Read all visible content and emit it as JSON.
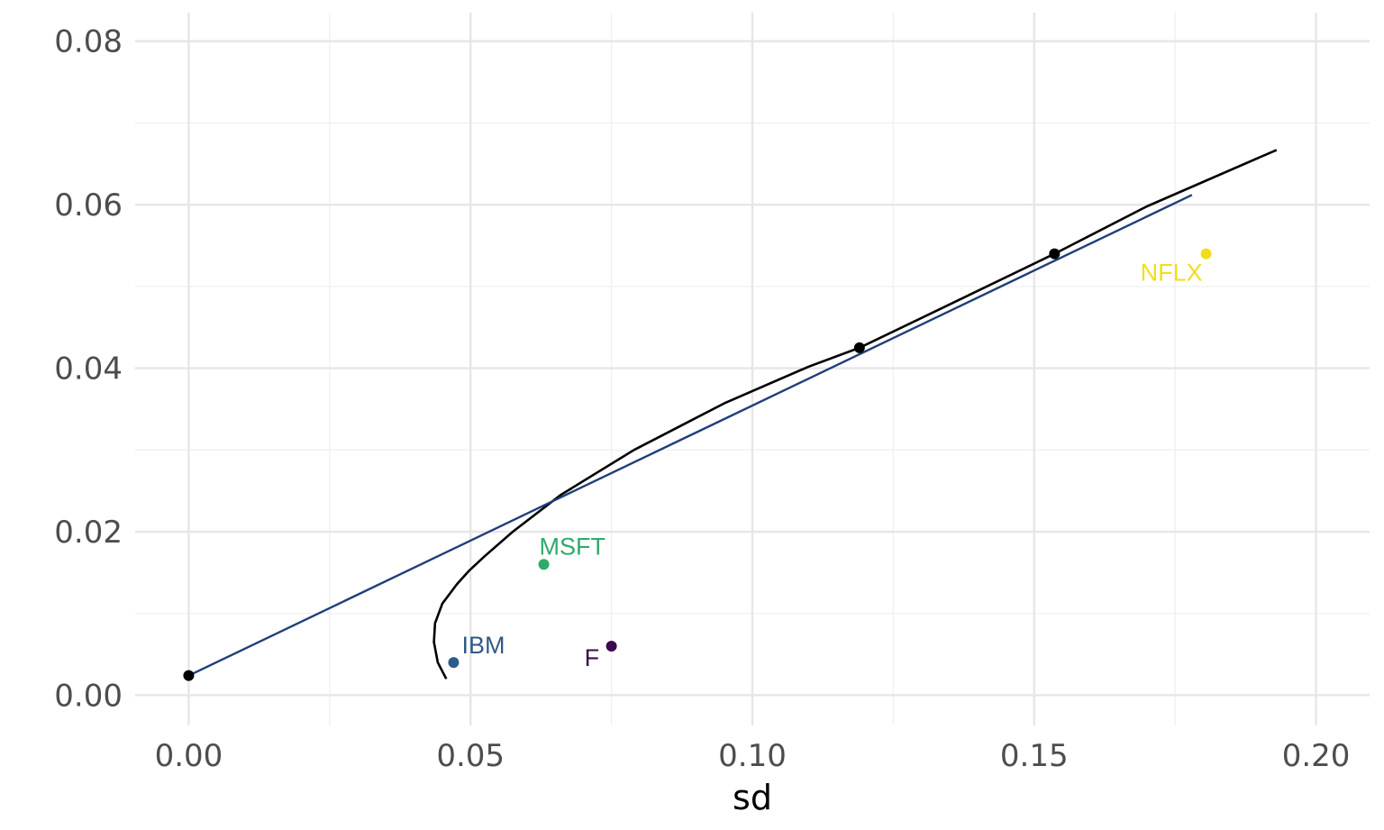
{
  "chart_data": {
    "type": "line",
    "title": "",
    "xlabel": "sd",
    "ylabel": "",
    "xlim": [
      -0.0095,
      0.2095
    ],
    "ylim": [
      -0.0037,
      0.0835
    ],
    "x_ticks": [
      "0.00",
      "0.05",
      "0.10",
      "0.15",
      "0.20"
    ],
    "x_tick_values": [
      0.0,
      0.05,
      0.1,
      0.15,
      0.2
    ],
    "y_ticks": [
      "0.00",
      "0.02",
      "0.04",
      "0.06",
      "0.08"
    ],
    "y_tick_values": [
      0.0,
      0.02,
      0.04,
      0.06,
      0.08
    ],
    "grid": true,
    "legend": "none",
    "series": [
      {
        "type": "line",
        "color": "#000000",
        "points": [
          [
            0.0457,
            0.002
          ],
          [
            0.0442,
            0.004
          ],
          [
            0.0435,
            0.0065
          ],
          [
            0.0437,
            0.0088
          ],
          [
            0.045,
            0.0112
          ],
          [
            0.0476,
            0.0136
          ],
          [
            0.0497,
            0.0152
          ],
          [
            0.0525,
            0.017
          ],
          [
            0.0575,
            0.02
          ],
          [
            0.066,
            0.0245
          ],
          [
            0.079,
            0.03
          ],
          [
            0.095,
            0.0357
          ],
          [
            0.11,
            0.0402
          ],
          [
            0.119,
            0.0425
          ],
          [
            0.135,
            0.0478
          ],
          [
            0.1536,
            0.054
          ],
          [
            0.17,
            0.0598
          ],
          [
            0.193,
            0.0667
          ]
        ]
      },
      {
        "type": "line",
        "color": "#1f3f7a",
        "points": [
          [
            0.0,
            0.0024
          ],
          [
            0.178,
            0.0612
          ]
        ]
      },
      {
        "type": "scatter",
        "color": "#000000",
        "points": [
          [
            0.0,
            0.0024
          ],
          [
            0.119,
            0.0425
          ],
          [
            0.1536,
            0.054
          ]
        ]
      }
    ],
    "assets": [
      {
        "label": "IBM",
        "x": 0.047,
        "y": 0.004,
        "color": "#2f5b88"
      },
      {
        "label": "MSFT",
        "x": 0.063,
        "y": 0.016,
        "color": "#2faa6a"
      },
      {
        "label": "F",
        "x": 0.075,
        "y": 0.006,
        "color": "#3b0a4a"
      },
      {
        "label": "NFLX",
        "x": 0.1805,
        "y": 0.054,
        "color": "#f2dd1d"
      }
    ]
  }
}
